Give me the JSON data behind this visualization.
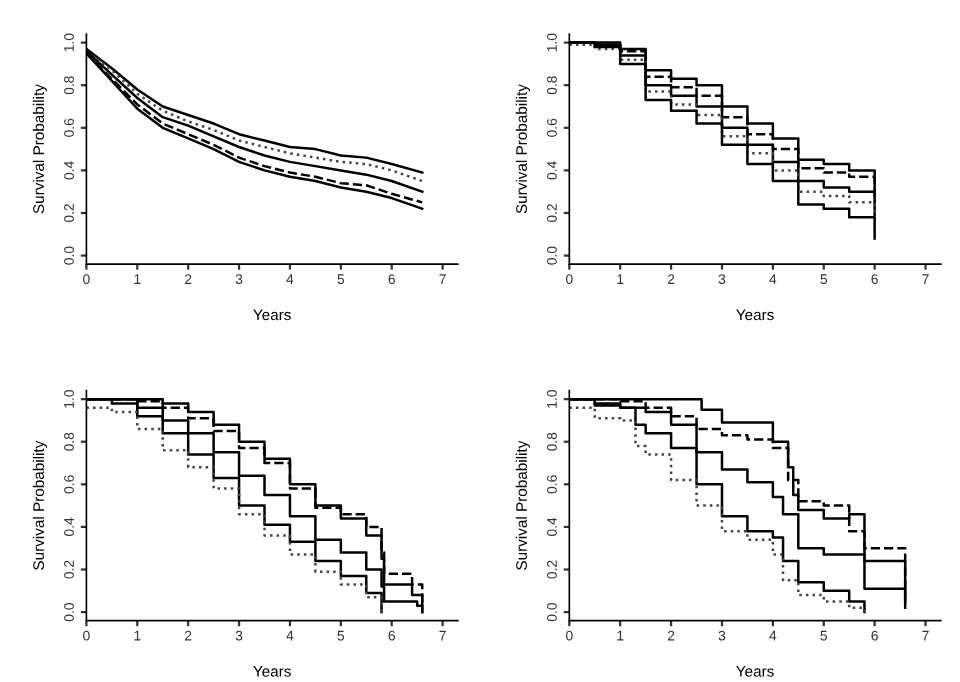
{
  "chart_data": [
    {
      "type": "line",
      "xlabel": "Years",
      "ylabel": "Survival Probability",
      "xlim": [
        0,
        7.3
      ],
      "ylim": [
        -0.04,
        1.04
      ],
      "xticks": [
        0,
        1,
        2,
        3,
        4,
        5,
        6,
        7
      ],
      "yticks": [
        {
          "value": 0,
          "label": "0.0"
        },
        {
          "value": 0.2,
          "label": "0.2"
        },
        {
          "value": 0.4,
          "label": "0.4"
        },
        {
          "value": 0.6,
          "label": "0.6"
        },
        {
          "value": 0.8,
          "label": "0.8"
        },
        {
          "value": 1,
          "label": "1.0"
        }
      ],
      "grid": false,
      "legend": false,
      "series": [
        {
          "color": "#000000",
          "line_style": "solid",
          "x": [
            0,
            0.5,
            1,
            1.5,
            2,
            2.5,
            3,
            3.5,
            4,
            4.5,
            5,
            5.5,
            6,
            6.6
          ],
          "values": [
            0.97,
            0.88,
            0.78,
            0.7,
            0.66,
            0.62,
            0.57,
            0.54,
            0.51,
            0.5,
            0.47,
            0.46,
            0.43,
            0.39
          ]
        },
        {
          "color": "#444444",
          "line_style": "dotted",
          "x": [
            0,
            0.5,
            1,
            1.5,
            2,
            2.5,
            3,
            3.5,
            4,
            4.5,
            5,
            5.5,
            6,
            6.6
          ],
          "values": [
            0.96,
            0.87,
            0.76,
            0.68,
            0.63,
            0.59,
            0.54,
            0.51,
            0.48,
            0.46,
            0.44,
            0.43,
            0.4,
            0.35
          ]
        },
        {
          "color": "#000000",
          "line_style": "solid",
          "x": [
            0,
            0.5,
            1,
            1.5,
            2,
            2.5,
            3,
            3.5,
            4,
            4.5,
            5,
            5.5,
            6,
            6.6
          ],
          "values": [
            0.96,
            0.85,
            0.74,
            0.65,
            0.61,
            0.56,
            0.51,
            0.47,
            0.44,
            0.42,
            0.4,
            0.38,
            0.35,
            0.3
          ]
        },
        {
          "color": "#000000",
          "line_style": "dashed",
          "x": [
            0,
            0.5,
            1,
            1.5,
            2,
            2.5,
            3,
            3.5,
            4,
            4.5,
            5,
            5.5,
            6,
            6.6
          ],
          "values": [
            0.95,
            0.83,
            0.71,
            0.62,
            0.57,
            0.52,
            0.46,
            0.42,
            0.39,
            0.37,
            0.34,
            0.33,
            0.29,
            0.25
          ]
        },
        {
          "color": "#000000",
          "line_style": "solid",
          "x": [
            0,
            0.5,
            1,
            1.5,
            2,
            2.5,
            3,
            3.5,
            4,
            4.5,
            5,
            5.5,
            6,
            6.6
          ],
          "values": [
            0.95,
            0.82,
            0.69,
            0.6,
            0.55,
            0.5,
            0.44,
            0.4,
            0.37,
            0.35,
            0.32,
            0.3,
            0.27,
            0.22
          ]
        }
      ]
    },
    {
      "type": "step",
      "xlabel": "Years",
      "ylabel": "Survival Probability",
      "xlim": [
        0,
        7.3
      ],
      "ylim": [
        -0.04,
        1.04
      ],
      "xticks": [
        0,
        1,
        2,
        3,
        4,
        5,
        6,
        7
      ],
      "yticks": [
        {
          "value": 0,
          "label": "0.0"
        },
        {
          "value": 0.2,
          "label": "0.2"
        },
        {
          "value": 0.4,
          "label": "0.4"
        },
        {
          "value": 0.6,
          "label": "0.6"
        },
        {
          "value": 0.8,
          "label": "0.8"
        },
        {
          "value": 1,
          "label": "1.0"
        }
      ],
      "grid": false,
      "legend": false,
      "series": [
        {
          "color": "#000000",
          "line_style": "solid",
          "x": [
            0,
            0.9,
            1,
            1.5,
            2,
            2.5,
            3,
            3.5,
            4,
            4.5,
            5,
            5.5,
            6
          ],
          "values": [
            1,
            1,
            0.97,
            0.87,
            0.83,
            0.8,
            0.7,
            0.62,
            0.55,
            0.45,
            0.43,
            0.4,
            0.3
          ]
        },
        {
          "color": "#000000",
          "line_style": "dashed",
          "x": [
            0,
            0.5,
            1,
            1.5,
            2,
            2.5,
            3,
            3.5,
            4,
            4.5,
            5,
            5.5,
            6
          ],
          "values": [
            1,
            0.99,
            0.96,
            0.84,
            0.79,
            0.75,
            0.65,
            0.57,
            0.5,
            0.41,
            0.39,
            0.37,
            0.25
          ]
        },
        {
          "color": "#000000",
          "line_style": "solid",
          "x": [
            0,
            0.5,
            1,
            1.5,
            2,
            2.5,
            3,
            3.5,
            4,
            4.5,
            5,
            5.5,
            6
          ],
          "values": [
            1,
            0.99,
            0.94,
            0.8,
            0.75,
            0.7,
            0.6,
            0.52,
            0.44,
            0.35,
            0.32,
            0.3,
            0.19
          ]
        },
        {
          "color": "#444444",
          "line_style": "dotted",
          "x": [
            0,
            0.5,
            1,
            1.5,
            2,
            2.5,
            3,
            3.5,
            4,
            4.5,
            5,
            5.5,
            6
          ],
          "values": [
            0.99,
            0.97,
            0.92,
            0.77,
            0.71,
            0.66,
            0.56,
            0.48,
            0.4,
            0.3,
            0.28,
            0.25,
            0.14
          ]
        },
        {
          "color": "#000000",
          "line_style": "solid",
          "x": [
            0,
            0.5,
            1,
            1.5,
            2,
            2.5,
            3,
            3.5,
            4,
            4.5,
            5,
            5.5,
            6
          ],
          "values": [
            1,
            0.98,
            0.9,
            0.73,
            0.68,
            0.62,
            0.52,
            0.43,
            0.35,
            0.24,
            0.22,
            0.18,
            0.08
          ]
        }
      ]
    },
    {
      "type": "step",
      "xlabel": "Years",
      "ylabel": "Survival Probability",
      "xlim": [
        0,
        7.3
      ],
      "ylim": [
        -0.04,
        1.04
      ],
      "xticks": [
        0,
        1,
        2,
        3,
        4,
        5,
        6,
        7
      ],
      "yticks": [
        {
          "value": 0,
          "label": "0.0"
        },
        {
          "value": 0.2,
          "label": "0.2"
        },
        {
          "value": 0.4,
          "label": "0.4"
        },
        {
          "value": 0.6,
          "label": "0.6"
        },
        {
          "value": 0.8,
          "label": "0.8"
        },
        {
          "value": 1,
          "label": "1.0"
        }
      ],
      "grid": false,
      "legend": false,
      "series": [
        {
          "color": "#000000",
          "line_style": "solid",
          "x": [
            0,
            1,
            1.5,
            2,
            2.5,
            3,
            3.5,
            4,
            4.5,
            5,
            5.5,
            5.8,
            5.85,
            6.4,
            6.6
          ],
          "values": [
            1,
            1,
            0.98,
            0.94,
            0.88,
            0.8,
            0.72,
            0.6,
            0.5,
            0.44,
            0.36,
            0.25,
            0.13,
            0.08,
            0.0
          ]
        },
        {
          "color": "#000000",
          "line_style": "dashed",
          "x": [
            0,
            1,
            1.5,
            2,
            2.5,
            3,
            3.5,
            4,
            4.5,
            5,
            5.5,
            5.8,
            5.85,
            6.4,
            6.6
          ],
          "values": [
            1,
            0.99,
            0.96,
            0.91,
            0.85,
            0.77,
            0.7,
            0.58,
            0.49,
            0.46,
            0.4,
            0.28,
            0.18,
            0.13,
            0.03
          ]
        },
        {
          "color": "#000000",
          "line_style": "solid",
          "x": [
            0,
            1,
            1.5,
            2,
            2.5,
            3,
            3.5,
            4,
            4.5,
            5,
            5.5,
            5.8,
            5.85,
            6.5,
            6.6
          ],
          "values": [
            1,
            0.96,
            0.9,
            0.84,
            0.75,
            0.64,
            0.55,
            0.45,
            0.34,
            0.28,
            0.2,
            0.12,
            0.05,
            0.03,
            0.0
          ]
        },
        {
          "color": "#000000",
          "line_style": "solid",
          "x": [
            0,
            0.5,
            1,
            1.5,
            2,
            2.5,
            3,
            3.5,
            4,
            4.5,
            5,
            5.5,
            5.8
          ],
          "values": [
            1,
            0.98,
            0.92,
            0.84,
            0.74,
            0.63,
            0.5,
            0.41,
            0.33,
            0.24,
            0.17,
            0.09,
            0.0
          ]
        },
        {
          "color": "#444444",
          "line_style": "dotted",
          "x": [
            0,
            0.5,
            1,
            1.5,
            2,
            2.5,
            3,
            3.5,
            4,
            4.5,
            5,
            5.5,
            5.8
          ],
          "values": [
            0.96,
            0.94,
            0.86,
            0.76,
            0.68,
            0.58,
            0.46,
            0.36,
            0.27,
            0.19,
            0.13,
            0.07,
            0.0
          ]
        }
      ]
    },
    {
      "type": "step",
      "xlabel": "Years",
      "ylabel": "Survival Probability",
      "xlim": [
        0,
        7.3
      ],
      "ylim": [
        -0.04,
        1.04
      ],
      "xticks": [
        0,
        1,
        2,
        3,
        4,
        5,
        6,
        7
      ],
      "yticks": [
        {
          "value": 0,
          "label": "0.0"
        },
        {
          "value": 0.2,
          "label": "0.2"
        },
        {
          "value": 0.4,
          "label": "0.4"
        },
        {
          "value": 0.6,
          "label": "0.6"
        },
        {
          "value": 0.8,
          "label": "0.8"
        },
        {
          "value": 1,
          "label": "1.0"
        }
      ],
      "grid": false,
      "legend": false,
      "series": [
        {
          "color": "#000000",
          "line_style": "solid",
          "x": [
            0,
            2.4,
            2.6,
            3,
            3.5,
            4,
            4.3,
            4.4,
            4.5,
            5,
            5.5,
            5.8,
            6.5,
            6.6
          ],
          "values": [
            1,
            1,
            0.95,
            0.89,
            0.89,
            0.8,
            0.68,
            0.55,
            0.48,
            0.44,
            0.46,
            0.24,
            0.24,
            0.05
          ]
        },
        {
          "color": "#000000",
          "line_style": "dashed",
          "x": [
            0,
            1,
            1.5,
            2,
            2.5,
            3,
            3.5,
            4,
            4.3,
            4.5,
            5,
            5.5,
            5.8,
            6.5,
            6.6
          ],
          "values": [
            1,
            0.99,
            0.96,
            0.92,
            0.86,
            0.83,
            0.81,
            0.77,
            0.62,
            0.52,
            0.5,
            0.38,
            0.3,
            0.3,
            0.08
          ]
        },
        {
          "color": "#000000",
          "line_style": "solid",
          "x": [
            0,
            0.5,
            1,
            1.5,
            2,
            2.5,
            3,
            3.5,
            4,
            4.2,
            4.5,
            5,
            5.5,
            5.8,
            6.5,
            6.6
          ],
          "values": [
            1,
            0.98,
            0.96,
            0.94,
            0.88,
            0.75,
            0.67,
            0.61,
            0.54,
            0.46,
            0.3,
            0.27,
            0.27,
            0.11,
            0.11,
            0.02
          ]
        },
        {
          "color": "#000000",
          "line_style": "solid",
          "x": [
            0,
            0.5,
            1,
            1.3,
            1.5,
            2,
            2.5,
            3,
            3.5,
            4,
            4.2,
            4.5,
            5,
            5.5,
            5.8
          ],
          "values": [
            1,
            0.97,
            0.96,
            0.88,
            0.84,
            0.77,
            0.6,
            0.45,
            0.38,
            0.35,
            0.24,
            0.14,
            0.1,
            0.05,
            0.0
          ]
        },
        {
          "color": "#444444",
          "line_style": "dotted",
          "x": [
            0,
            0.5,
            1,
            1.3,
            1.5,
            2,
            2.5,
            3,
            3.5,
            4,
            4.2,
            4.5,
            5,
            5.5,
            5.8
          ],
          "values": [
            0.96,
            0.91,
            0.9,
            0.78,
            0.74,
            0.62,
            0.5,
            0.38,
            0.34,
            0.27,
            0.15,
            0.08,
            0.05,
            0.02,
            0.0
          ]
        }
      ]
    }
  ]
}
